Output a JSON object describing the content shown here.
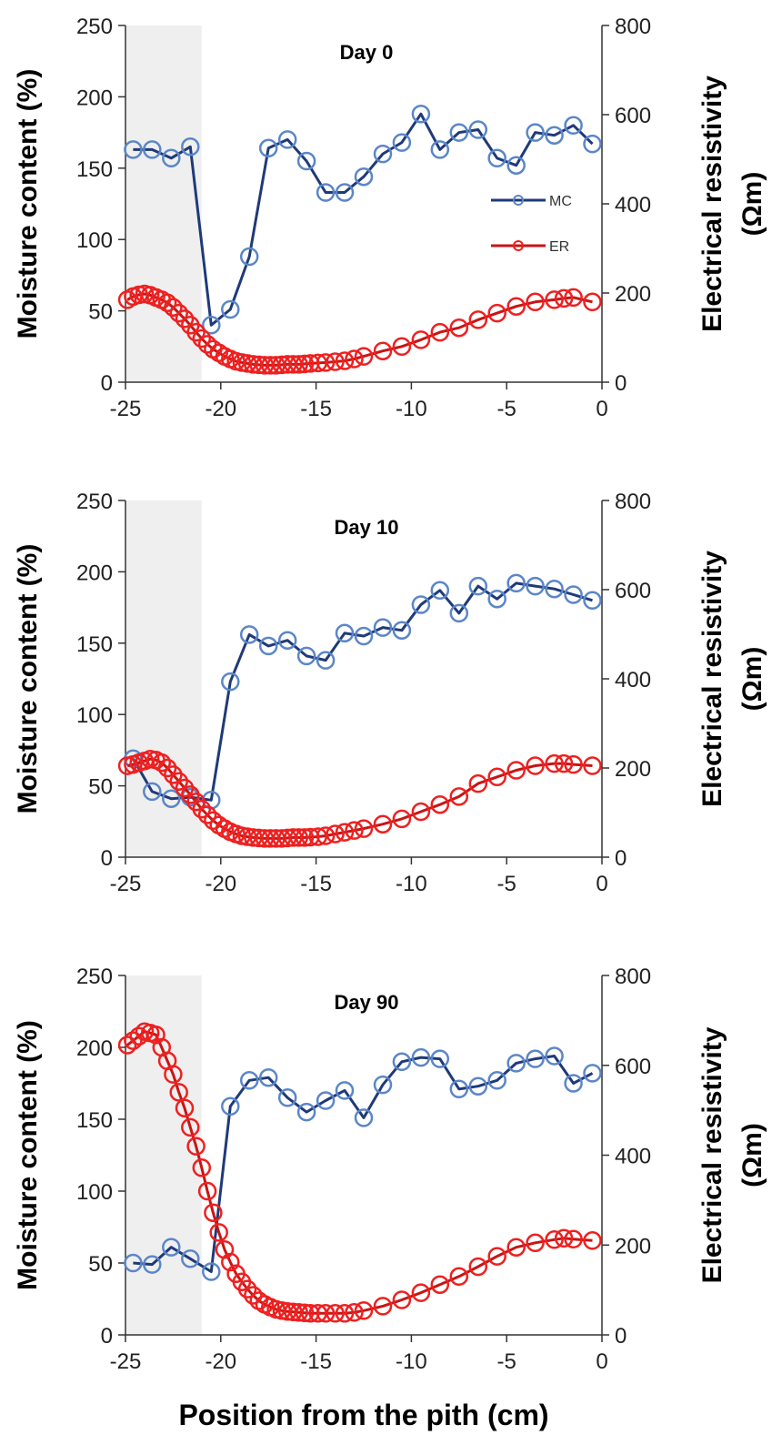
{
  "figure": {
    "xlabel": "Position from the pith (cm)"
  },
  "legend": [
    {
      "label": "MC",
      "color": "#1f3a78"
    },
    {
      "label": "ER",
      "color": "#e01010"
    }
  ],
  "axes": {
    "left_label": "Moisture content (%)",
    "right_label_line1": "Electrical resistivity",
    "right_label_line2": "(Ωm)",
    "xticks": [
      "-25",
      "-20",
      "-15",
      "-10",
      "-5",
      "0"
    ],
    "yticks_left": [
      "0",
      "50",
      "100",
      "150",
      "200",
      "250"
    ],
    "yticks_right": [
      "0",
      "200",
      "400",
      "600",
      "800"
    ]
  },
  "colors": {
    "mc_line": "#1f3a78",
    "mc_marker": "#5b86c8",
    "er_line": "#c81414",
    "er_marker": "#ee2020",
    "shade": "#efefef"
  },
  "chart_data": [
    {
      "type": "line",
      "title": "Day 0",
      "xlabel": "Position from the pith (cm)",
      "ylabel": "Moisture content (%)",
      "y2label": "Electrical resistivity (Ωm)",
      "xlim": [
        -25,
        0
      ],
      "ylim": [
        0,
        250
      ],
      "y2lim": [
        0,
        800
      ],
      "shaded_region": [
        -25,
        -21
      ],
      "series": [
        {
          "name": "MC",
          "axis": "left",
          "x": [
            -24.6,
            -23.6,
            -22.6,
            -21.6,
            -20.5,
            -19.5,
            -18.5,
            -17.5,
            -16.5,
            -15.5,
            -14.5,
            -13.5,
            -12.5,
            -11.5,
            -10.5,
            -9.5,
            -8.5,
            -7.5,
            -6.5,
            -5.5,
            -4.5,
            -3.5,
            -2.5,
            -1.5,
            -0.5
          ],
          "y": [
            163,
            163,
            157,
            165,
            40,
            51,
            88,
            164,
            170,
            155,
            133,
            133,
            144,
            160,
            168,
            188,
            163,
            175,
            177,
            157,
            152,
            175,
            173,
            180,
            167
          ]
        },
        {
          "name": "ER",
          "axis": "right",
          "x": [
            -24.9,
            -24.6,
            -24.3,
            -24.0,
            -23.7,
            -23.4,
            -23.1,
            -22.8,
            -22.5,
            -22.2,
            -21.9,
            -21.6,
            -21.3,
            -21.0,
            -20.7,
            -20.4,
            -20.1,
            -19.8,
            -19.5,
            -19.2,
            -18.9,
            -18.6,
            -18.3,
            -18.0,
            -17.7,
            -17.4,
            -17.1,
            -16.8,
            -16.5,
            -16.2,
            -15.9,
            -15.6,
            -15.3,
            -14.9,
            -14.5,
            -14.0,
            -13.5,
            -13.0,
            -12.5,
            -11.5,
            -10.5,
            -9.5,
            -8.5,
            -7.5,
            -6.5,
            -5.5,
            -4.5,
            -3.5,
            -2.5,
            -2.0,
            -1.5,
            -0.5
          ],
          "y": [
            185,
            192,
            196,
            198,
            195,
            190,
            185,
            178,
            168,
            155,
            142,
            128,
            112,
            98,
            85,
            74,
            66,
            58,
            52,
            47,
            44,
            42,
            40,
            39,
            38,
            38,
            38,
            39,
            40,
            40,
            40,
            41,
            42,
            43,
            44,
            46,
            48,
            52,
            58,
            70,
            80,
            95,
            112,
            122,
            140,
            155,
            170,
            180,
            185,
            188,
            190,
            180
          ]
        }
      ]
    },
    {
      "type": "line",
      "title": "Day 10",
      "xlabel": "Position from the pith (cm)",
      "ylabel": "Moisture content (%)",
      "y2label": "Electrical resistivity (Ωm)",
      "xlim": [
        -25,
        0
      ],
      "ylim": [
        0,
        250
      ],
      "y2lim": [
        0,
        800
      ],
      "shaded_region": [
        -25,
        -21
      ],
      "series": [
        {
          "name": "MC",
          "axis": "left",
          "x": [
            -24.6,
            -23.6,
            -22.6,
            -21.6,
            -20.5,
            -19.5,
            -18.5,
            -17.5,
            -16.5,
            -15.5,
            -14.5,
            -13.5,
            -12.5,
            -11.5,
            -10.5,
            -9.5,
            -8.5,
            -7.5,
            -6.5,
            -5.5,
            -4.5,
            -3.5,
            -2.5,
            -1.5,
            -0.5
          ],
          "y": [
            69,
            46,
            41,
            42,
            40,
            123,
            156,
            148,
            152,
            141,
            138,
            157,
            155,
            161,
            159,
            177,
            187,
            171,
            190,
            181,
            192,
            190,
            188,
            184,
            180
          ]
        },
        {
          "name": "ER",
          "axis": "right",
          "x": [
            -24.9,
            -24.6,
            -24.3,
            -24.0,
            -23.7,
            -23.4,
            -23.1,
            -22.8,
            -22.5,
            -22.2,
            -21.9,
            -21.6,
            -21.3,
            -21.0,
            -20.7,
            -20.4,
            -20.1,
            -19.8,
            -19.5,
            -19.2,
            -18.9,
            -18.6,
            -18.3,
            -18.0,
            -17.7,
            -17.4,
            -17.1,
            -16.8,
            -16.5,
            -16.2,
            -15.9,
            -15.6,
            -15.3,
            -14.9,
            -14.5,
            -14.0,
            -13.5,
            -13.0,
            -12.5,
            -11.5,
            -10.5,
            -9.5,
            -8.5,
            -7.5,
            -6.5,
            -5.5,
            -4.5,
            -3.5,
            -2.5,
            -2.0,
            -1.5,
            -0.5
          ],
          "y": [
            205,
            208,
            212,
            216,
            220,
            218,
            212,
            200,
            185,
            170,
            155,
            140,
            124,
            108,
            95,
            82,
            72,
            64,
            57,
            52,
            48,
            46,
            44,
            43,
            42,
            42,
            42,
            42,
            43,
            44,
            44,
            44,
            45,
            46,
            48,
            52,
            56,
            60,
            64,
            74,
            86,
            102,
            118,
            136,
            165,
            180,
            195,
            205,
            210,
            210,
            208,
            205
          ]
        }
      ]
    },
    {
      "type": "line",
      "title": "Day 90",
      "xlabel": "Position from the pith (cm)",
      "ylabel": "Moisture content (%)",
      "y2label": "Electrical resistivity (Ωm)",
      "xlim": [
        -25,
        0
      ],
      "ylim": [
        0,
        250
      ],
      "y2lim": [
        0,
        800
      ],
      "shaded_region": [
        -25,
        -21
      ],
      "series": [
        {
          "name": "MC",
          "axis": "left",
          "x": [
            -24.6,
            -23.6,
            -22.6,
            -21.6,
            -20.5,
            -19.5,
            -18.5,
            -17.5,
            -16.5,
            -15.5,
            -14.5,
            -13.5,
            -12.5,
            -11.5,
            -10.5,
            -9.5,
            -8.5,
            -7.5,
            -6.5,
            -5.5,
            -4.5,
            -3.5,
            -2.5,
            -1.5,
            -0.5
          ],
          "y": [
            50,
            49,
            61,
            53,
            44,
            159,
            177,
            179,
            165,
            155,
            163,
            170,
            151,
            174,
            190,
            193,
            192,
            171,
            173,
            177,
            189,
            192,
            194,
            175,
            182
          ]
        },
        {
          "name": "ER",
          "axis": "right",
          "x": [
            -24.9,
            -24.6,
            -24.3,
            -24.0,
            -23.7,
            -23.4,
            -23.1,
            -22.8,
            -22.5,
            -22.2,
            -21.9,
            -21.6,
            -21.3,
            -21.0,
            -20.7,
            -20.4,
            -20.1,
            -19.8,
            -19.5,
            -19.2,
            -18.9,
            -18.6,
            -18.3,
            -18.0,
            -17.7,
            -17.4,
            -17.1,
            -16.8,
            -16.5,
            -16.2,
            -15.9,
            -15.6,
            -15.3,
            -14.9,
            -14.5,
            -14.0,
            -13.5,
            -13.0,
            -12.5,
            -11.5,
            -10.5,
            -9.5,
            -8.5,
            -7.5,
            -6.5,
            -5.5,
            -4.5,
            -3.5,
            -2.5,
            -2.0,
            -1.5,
            -0.5
          ],
          "y": [
            645,
            655,
            665,
            675,
            672,
            668,
            640,
            610,
            580,
            540,
            505,
            462,
            420,
            372,
            320,
            272,
            228,
            190,
            162,
            136,
            118,
            102,
            88,
            76,
            68,
            62,
            57,
            54,
            52,
            51,
            50,
            49,
            48,
            48,
            48,
            48,
            48,
            50,
            54,
            64,
            78,
            94,
            112,
            130,
            152,
            175,
            195,
            205,
            212,
            215,
            213,
            210
          ]
        }
      ]
    }
  ]
}
